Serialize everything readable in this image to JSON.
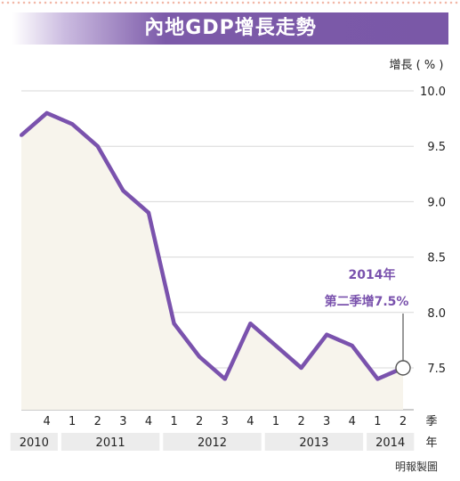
{
  "header": {
    "title": "內地GDP增長走勢"
  },
  "chart_data": {
    "type": "area",
    "title": "內地GDP增長走勢",
    "ylabel": "增長 ( % )",
    "xlabel": "季",
    "year_axis_label": "年",
    "source": "明報製圖",
    "ylim": [
      7.0,
      10.0
    ],
    "yticks": [
      "10.0",
      "9.5",
      "9.0",
      "8.5",
      "8.0",
      "7.5"
    ],
    "categories": [
      "2010Q3",
      "2010Q4",
      "2011Q1",
      "2011Q2",
      "2011Q3",
      "2011Q4",
      "2012Q1",
      "2012Q2",
      "2012Q3",
      "2012Q4",
      "2013Q1",
      "2013Q2",
      "2013Q3",
      "2013Q4",
      "2014Q1",
      "2014Q2"
    ],
    "quarter_labels": [
      "",
      "4",
      "1",
      "2",
      "3",
      "4",
      "1",
      "2",
      "3",
      "4",
      "1",
      "2",
      "3",
      "4",
      "1",
      "2"
    ],
    "years": [
      {
        "label": "2010",
        "start": 0,
        "end": 1
      },
      {
        "label": "2011",
        "start": 2,
        "end": 5
      },
      {
        "label": "2012",
        "start": 6,
        "end": 9
      },
      {
        "label": "2013",
        "start": 10,
        "end": 13
      },
      {
        "label": "2014",
        "start": 14,
        "end": 15
      }
    ],
    "values": [
      9.6,
      9.8,
      9.7,
      9.5,
      9.1,
      8.9,
      7.9,
      7.6,
      7.4,
      7.9,
      7.7,
      7.5,
      7.8,
      7.7,
      7.4,
      7.5
    ],
    "annotation": {
      "line1": "2014年",
      "line2": "第二季增7.5%",
      "index": 15
    },
    "colors": {
      "line": "#7a52ad",
      "fill": "#f7f4ec",
      "annotation": "#7a52ad",
      "year_band": "#ececec",
      "grid": "#d8d8d8",
      "text": "#222222"
    }
  }
}
